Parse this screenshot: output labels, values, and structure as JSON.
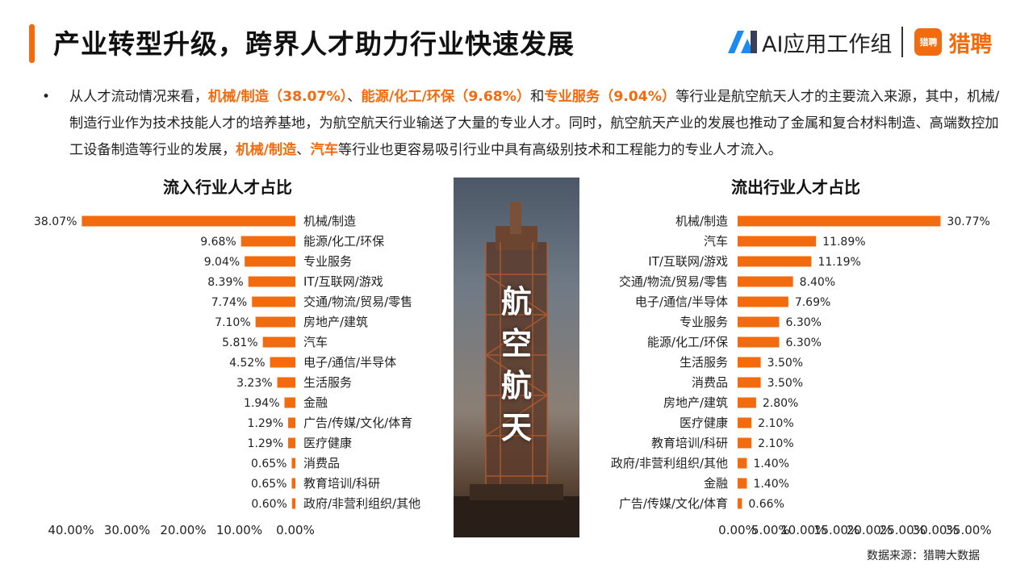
{
  "title": "产业转型升级，跨界人才助力行业快速发展",
  "brand": {
    "ai_label": "AI应用工作组",
    "liepin_icon_text": "猎聘",
    "liepin_label": "猎聘"
  },
  "paragraph": [
    {
      "t": "从人才流动情况来看，",
      "hl": false
    },
    {
      "t": "机械/制造（38.07%）",
      "hl": true
    },
    {
      "t": "、",
      "hl": false
    },
    {
      "t": "能源/化工/环保（9.68%）",
      "hl": true
    },
    {
      "t": "和",
      "hl": false
    },
    {
      "t": "专业服务（9.04%）",
      "hl": true
    },
    {
      "t": "等行业是航空航天人才的主要流入来源，其中，机械/制造行业作为技术技能人才的培养基地，为航空航天行业输送了大量的专业人才。同时，航空航天产业的发展也推动了金属和复合材料制造、高端数控加工设备制造等行业的发展，",
      "hl": false
    },
    {
      "t": "机械/制造",
      "hl": true
    },
    {
      "t": "、",
      "hl": false
    },
    {
      "t": "汽车",
      "hl": true
    },
    {
      "t": "等行业也更容易吸引行业中具有高级别技术和工程能力的专业人才流入。",
      "hl": false
    }
  ],
  "photo_caption": "航空航天",
  "source": "数据来源：猎聘大数据",
  "colors": {
    "accent": "#f26b0e"
  },
  "chart_data": [
    {
      "type": "bar",
      "orientation": "horizontal",
      "direction": "right-to-left",
      "title": "流入行业人才占比",
      "categories": [
        "机械/制造",
        "能源/化工/环保",
        "专业服务",
        "IT/互联网/游戏",
        "交通/物流/贸易/零售",
        "房地产/建筑",
        "汽车",
        "电子/通信/半导体",
        "生活服务",
        "金融",
        "广告/传媒/文化/体育",
        "医疗健康",
        "消费品",
        "教育培训/科研",
        "政府/非营利组织/其他"
      ],
      "values": [
        38.07,
        9.68,
        9.04,
        8.39,
        7.74,
        7.1,
        5.81,
        4.52,
        3.23,
        1.94,
        1.29,
        1.29,
        0.65,
        0.65,
        0.6
      ],
      "value_labels": [
        "38.07%",
        "9.68%",
        "9.04%",
        "8.39%",
        "7.74%",
        "7.10%",
        "5.81%",
        "4.52%",
        "3.23%",
        "1.94%",
        "1.29%",
        "1.29%",
        "0.65%",
        "0.65%",
        "0.60%"
      ],
      "xlim": [
        0,
        40
      ],
      "ticks": [
        "40.00%",
        "30.00%",
        "20.00%",
        "10.00%",
        "0.00%"
      ],
      "grid": false,
      "color": "#f26b0e"
    },
    {
      "type": "bar",
      "orientation": "horizontal",
      "direction": "left-to-right",
      "title": "流出行业人才占比",
      "categories": [
        "机械/制造",
        "汽车",
        "IT/互联网/游戏",
        "交通/物流/贸易/零售",
        "电子/通信/半导体",
        "专业服务",
        "能源/化工/环保",
        "生活服务",
        "消费品",
        "房地产/建筑",
        "医疗健康",
        "教育培训/科研",
        "政府/非营利组织/其他",
        "金融",
        "广告/传媒/文化/体育"
      ],
      "values": [
        30.77,
        11.89,
        11.19,
        8.4,
        7.69,
        6.3,
        6.3,
        3.5,
        3.5,
        2.8,
        2.1,
        2.1,
        1.4,
        1.4,
        0.66
      ],
      "value_labels": [
        "30.77%",
        "11.89%",
        "11.19%",
        "8.40%",
        "7.69%",
        "6.30%",
        "6.30%",
        "3.50%",
        "3.50%",
        "2.80%",
        "2.10%",
        "2.10%",
        "1.40%",
        "1.40%",
        "0.66%"
      ],
      "xlim": [
        0,
        35
      ],
      "ticks": [
        "0.00%",
        "5.00%",
        "10.00%",
        "15.00%",
        "20.00%",
        "25.00%",
        "30.00%",
        "35.00%"
      ],
      "grid": false,
      "color": "#f26b0e"
    }
  ]
}
